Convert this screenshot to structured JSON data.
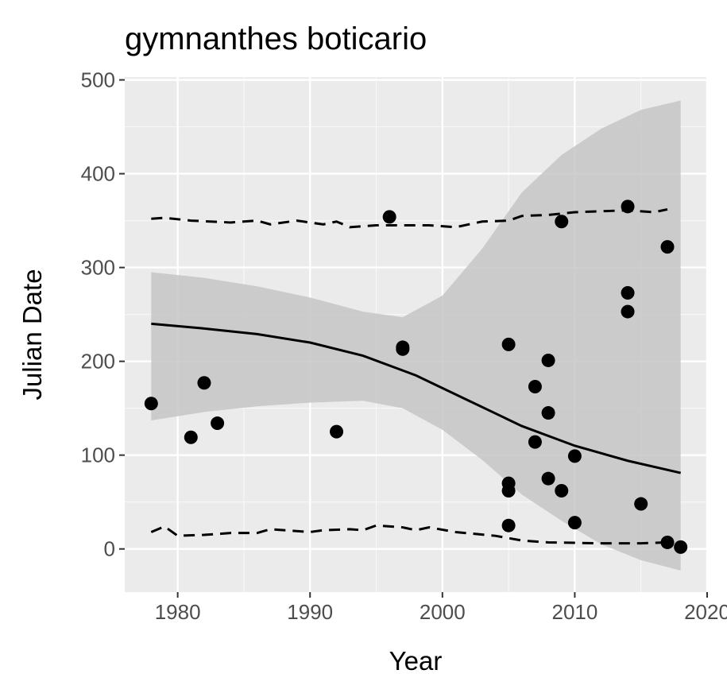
{
  "chart_data": {
    "type": "scatter",
    "title": "gymnanthes boticario",
    "x_label": "Year",
    "y_label": "Julian Date",
    "xlim": [
      1976,
      2020
    ],
    "ylim": [
      -46,
      503
    ],
    "xticks": [
      1980,
      1990,
      2000,
      2010,
      2020
    ],
    "yticks": [
      0,
      100,
      200,
      300,
      400,
      500
    ],
    "grid": true,
    "points": {
      "color": "#000000",
      "x": [
        1978,
        1981,
        1982,
        1983,
        1992,
        1996,
        1997,
        1997,
        2005,
        2005,
        2005,
        2005,
        2007,
        2007,
        2008,
        2008,
        2008,
        2009,
        2009,
        2010,
        2010,
        2014,
        2014,
        2014,
        2015,
        2017,
        2017,
        2018
      ],
      "values": [
        155,
        119,
        177,
        134,
        125,
        354,
        215,
        213,
        218,
        70,
        62,
        25,
        173,
        114,
        201,
        145,
        75,
        349,
        62,
        99,
        28,
        365,
        273,
        253,
        48,
        7,
        322,
        2
      ]
    },
    "fit": {
      "color": "#000000",
      "x": [
        1978,
        1982,
        1986,
        1990,
        1994,
        1998,
        2002,
        2006,
        2010,
        2014,
        2018
      ],
      "values": [
        240,
        235,
        229,
        220,
        206,
        185,
        158,
        131,
        110,
        94,
        81
      ]
    },
    "ribbon": {
      "color": "#c6c6c6",
      "x": [
        1978,
        1982,
        1986,
        1990,
        1994,
        1997,
        2000,
        2003,
        2006,
        2009,
        2012,
        2015,
        2018
      ],
      "upper": [
        295,
        289,
        280,
        268,
        253,
        247,
        270,
        320,
        380,
        420,
        448,
        468,
        478
      ],
      "lower": [
        137,
        146,
        152,
        156,
        158,
        150,
        127,
        95,
        58,
        30,
        5,
        -12,
        -23
      ]
    },
    "quantile_lines": [
      {
        "color": "#000000",
        "x": [
          1978,
          1979,
          1981,
          1984,
          1986,
          1987,
          1989,
          1991,
          1992,
          1993,
          1995,
          1997,
          1999,
          2001,
          2003,
          2005,
          2006,
          2008,
          2010,
          2014,
          2016,
          2017
        ],
        "values": [
          352,
          353,
          350,
          348,
          350,
          346,
          350,
          346,
          349,
          343,
          345,
          345,
          345,
          343,
          349,
          350,
          355,
          356,
          359,
          361,
          359,
          362
        ]
      },
      {
        "color": "#000000",
        "x": [
          1978,
          1979,
          1980,
          1982,
          1984,
          1986,
          1987,
          1990,
          1991,
          1993,
          1994,
          1995,
          1997,
          1998,
          1999,
          2001,
          2004,
          2006,
          2008,
          2012,
          2015,
          2017
        ],
        "values": [
          18,
          24,
          14,
          15,
          17,
          17,
          21,
          18,
          20,
          21,
          20,
          25,
          23,
          20,
          23,
          18,
          14,
          9,
          7,
          6,
          6,
          7
        ]
      }
    ]
  }
}
